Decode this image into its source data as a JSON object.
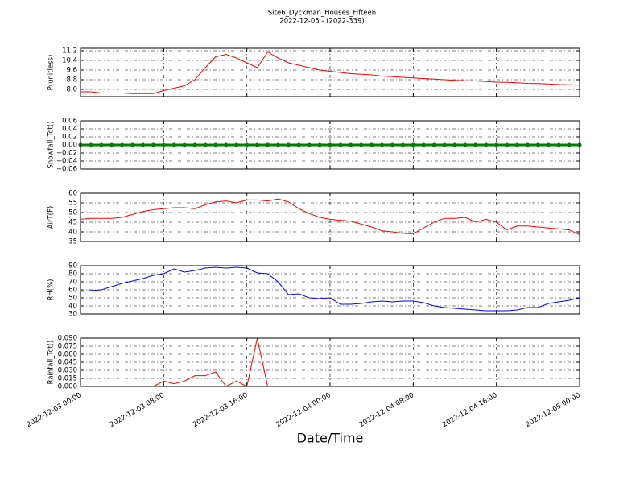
{
  "title": "Site6_Dyckman_Houses_Fifteen",
  "subtitle": "2022-12-05 - (2022-339)",
  "xlabel": "Date/Time",
  "chart_data": [
    {
      "type": "line",
      "ylabel": "P(unitless)",
      "x": [
        "2022-12-03 00:00",
        "2022-12-03 01:00",
        "2022-12-03 02:00",
        "2022-12-03 03:00",
        "2022-12-03 04:00",
        "2022-12-03 05:00",
        "2022-12-03 06:00",
        "2022-12-03 07:00",
        "2022-12-03 08:00",
        "2022-12-03 09:00",
        "2022-12-03 10:00",
        "2022-12-03 11:00",
        "2022-12-03 12:00",
        "2022-12-03 13:00",
        "2022-12-03 14:00",
        "2022-12-03 15:00",
        "2022-12-03 16:00",
        "2022-12-03 17:00",
        "2022-12-03 18:00",
        "2022-12-03 19:00",
        "2022-12-03 20:00",
        "2022-12-03 21:00",
        "2022-12-03 22:00",
        "2022-12-03 23:00",
        "2022-12-04 00:00",
        "2022-12-04 01:00",
        "2022-12-04 02:00",
        "2022-12-04 03:00",
        "2022-12-04 04:00",
        "2022-12-04 05:00",
        "2022-12-04 06:00",
        "2022-12-04 07:00",
        "2022-12-04 08:00",
        "2022-12-04 09:00",
        "2022-12-04 10:00",
        "2022-12-04 11:00",
        "2022-12-04 12:00",
        "2022-12-04 13:00",
        "2022-12-04 14:00",
        "2022-12-04 15:00",
        "2022-12-04 16:00",
        "2022-12-04 17:00",
        "2022-12-04 18:00",
        "2022-12-04 19:00",
        "2022-12-04 20:00",
        "2022-12-04 21:00",
        "2022-12-04 22:00",
        "2022-12-04 23:00",
        "2022-12-05 00:00"
      ],
      "series": [
        {
          "color": "#ff0000",
          "values": [
            7.8,
            7.8,
            7.7,
            7.7,
            7.7,
            7.65,
            7.65,
            7.65,
            7.9,
            8.1,
            8.3,
            8.8,
            9.8,
            10.7,
            10.9,
            10.6,
            10.2,
            9.8,
            11.1,
            10.6,
            10.2,
            10.0,
            9.8,
            9.6,
            9.5,
            9.4,
            9.3,
            9.25,
            9.2,
            9.1,
            9.05,
            9.0,
            8.95,
            8.9,
            8.85,
            8.8,
            8.75,
            8.72,
            8.7,
            8.65,
            8.6,
            8.58,
            8.55,
            8.5,
            8.48,
            8.45,
            8.4,
            8.38,
            8.35
          ]
        }
      ],
      "ylim": [
        7.4,
        11.4
      ],
      "yticks": [
        {
          "value": 8,
          "label": "8.0"
        },
        8.8,
        9.6,
        10.4,
        11.2
      ],
      "xlim": [
        "2022-12-03 00:00",
        "2022-12-05 00:00"
      ],
      "xticks": [
        "2022-12-03 00:00",
        "2022-12-03 08:00",
        "2022-12-03 16:00",
        "2022-12-04 00:00",
        "2022-12-04 08:00",
        "2022-12-04 16:00",
        "2022-12-05 00:00"
      ],
      "grid": true
    },
    {
      "type": "line",
      "ylabel": "Snowfall_Tot()",
      "x": [
        "2022-12-03 00:00",
        "2022-12-03 01:00",
        "2022-12-03 02:00",
        "2022-12-03 03:00",
        "2022-12-03 04:00",
        "2022-12-03 05:00",
        "2022-12-03 06:00",
        "2022-12-03 07:00",
        "2022-12-03 08:00",
        "2022-12-03 09:00",
        "2022-12-03 10:00",
        "2022-12-03 11:00",
        "2022-12-03 12:00",
        "2022-12-03 13:00",
        "2022-12-03 14:00",
        "2022-12-03 15:00",
        "2022-12-03 16:00",
        "2022-12-03 17:00",
        "2022-12-03 18:00",
        "2022-12-03 19:00",
        "2022-12-03 20:00",
        "2022-12-03 21:00",
        "2022-12-03 22:00",
        "2022-12-03 23:00",
        "2022-12-04 00:00",
        "2022-12-04 01:00",
        "2022-12-04 02:00",
        "2022-12-04 03:00",
        "2022-12-04 04:00",
        "2022-12-04 05:00",
        "2022-12-04 06:00",
        "2022-12-04 07:00",
        "2022-12-04 08:00",
        "2022-12-04 09:00",
        "2022-12-04 10:00",
        "2022-12-04 11:00",
        "2022-12-04 12:00",
        "2022-12-04 13:00",
        "2022-12-04 14:00",
        "2022-12-04 15:00",
        "2022-12-04 16:00",
        "2022-12-04 17:00",
        "2022-12-04 18:00",
        "2022-12-04 19:00",
        "2022-12-04 20:00",
        "2022-12-04 21:00",
        "2022-12-04 22:00",
        "2022-12-04 23:00",
        "2022-12-05 00:00"
      ],
      "series": [
        {
          "color": "#008000",
          "marker": true,
          "values": [
            0,
            0,
            0,
            0,
            0,
            0,
            0,
            0,
            0,
            0,
            0,
            0,
            0,
            0,
            0,
            0,
            0,
            0,
            0,
            0,
            0,
            0,
            0,
            0,
            0,
            0,
            0,
            0,
            0,
            0,
            0,
            0,
            0,
            0,
            0,
            0,
            0,
            0,
            0,
            0,
            0,
            0,
            0,
            0,
            0,
            0,
            0,
            0,
            0
          ]
        }
      ],
      "ylim": [
        -0.06,
        0.06
      ],
      "yticks": [
        {
          "value": -0.06,
          "label": "−0.06"
        },
        {
          "value": -0.04,
          "label": "−0.04"
        },
        {
          "value": -0.02,
          "label": "−0.02"
        },
        {
          "value": 0,
          "label": "0.00"
        },
        0.02,
        0.04,
        0.06
      ],
      "xlim": [
        "2022-12-03 00:00",
        "2022-12-05 00:00"
      ],
      "xticks": [
        "2022-12-03 00:00",
        "2022-12-03 08:00",
        "2022-12-03 16:00",
        "2022-12-04 00:00",
        "2022-12-04 08:00",
        "2022-12-04 16:00",
        "2022-12-05 00:00"
      ],
      "grid": true
    },
    {
      "type": "line",
      "ylabel": "AirT(F)",
      "x": [
        "2022-12-03 00:00",
        "2022-12-03 01:00",
        "2022-12-03 02:00",
        "2022-12-03 03:00",
        "2022-12-03 04:00",
        "2022-12-03 05:00",
        "2022-12-03 06:00",
        "2022-12-03 07:00",
        "2022-12-03 08:00",
        "2022-12-03 09:00",
        "2022-12-03 10:00",
        "2022-12-03 11:00",
        "2022-12-03 12:00",
        "2022-12-03 13:00",
        "2022-12-03 14:00",
        "2022-12-03 15:00",
        "2022-12-03 16:00",
        "2022-12-03 17:00",
        "2022-12-03 18:00",
        "2022-12-03 19:00",
        "2022-12-03 20:00",
        "2022-12-03 21:00",
        "2022-12-03 22:00",
        "2022-12-03 23:00",
        "2022-12-04 00:00",
        "2022-12-04 01:00",
        "2022-12-04 02:00",
        "2022-12-04 03:00",
        "2022-12-04 04:00",
        "2022-12-04 05:00",
        "2022-12-04 06:00",
        "2022-12-04 07:00",
        "2022-12-04 08:00",
        "2022-12-04 09:00",
        "2022-12-04 10:00",
        "2022-12-04 11:00",
        "2022-12-04 12:00",
        "2022-12-04 13:00",
        "2022-12-04 14:00",
        "2022-12-04 15:00",
        "2022-12-04 16:00",
        "2022-12-04 17:00",
        "2022-12-04 18:00",
        "2022-12-04 19:00",
        "2022-12-04 20:00",
        "2022-12-04 21:00",
        "2022-12-04 22:00",
        "2022-12-04 23:00",
        "2022-12-05 00:00"
      ],
      "series": [
        {
          "color": "#ff0000",
          "values": [
            46.5,
            47,
            47,
            47,
            47.5,
            49,
            50.5,
            51.5,
            52,
            52.5,
            52.5,
            52,
            54,
            55.5,
            56,
            55,
            56.5,
            56.5,
            56,
            57,
            55.5,
            52,
            49.5,
            47.5,
            46.5,
            46,
            45.5,
            44,
            42.5,
            40.5,
            40,
            39.2,
            39,
            42,
            45,
            47,
            47,
            47.5,
            45,
            46.5,
            45,
            41,
            43,
            43,
            42.5,
            42,
            41.5,
            41,
            38.5
          ]
        }
      ],
      "ylim": [
        35,
        60
      ],
      "yticks": [
        35,
        40,
        45,
        50,
        55,
        60
      ],
      "xlim": [
        "2022-12-03 00:00",
        "2022-12-05 00:00"
      ],
      "xticks": [
        "2022-12-03 00:00",
        "2022-12-03 08:00",
        "2022-12-03 16:00",
        "2022-12-04 00:00",
        "2022-12-04 08:00",
        "2022-12-04 16:00",
        "2022-12-05 00:00"
      ],
      "grid": true
    },
    {
      "type": "line",
      "ylabel": "RH(%)",
      "x": [
        "2022-12-03 00:00",
        "2022-12-03 01:00",
        "2022-12-03 02:00",
        "2022-12-03 03:00",
        "2022-12-03 04:00",
        "2022-12-03 05:00",
        "2022-12-03 06:00",
        "2022-12-03 07:00",
        "2022-12-03 08:00",
        "2022-12-03 09:00",
        "2022-12-03 10:00",
        "2022-12-03 11:00",
        "2022-12-03 12:00",
        "2022-12-03 13:00",
        "2022-12-03 14:00",
        "2022-12-03 15:00",
        "2022-12-03 16:00",
        "2022-12-03 17:00",
        "2022-12-03 18:00",
        "2022-12-03 19:00",
        "2022-12-03 20:00",
        "2022-12-03 21:00",
        "2022-12-03 22:00",
        "2022-12-03 23:00",
        "2022-12-04 00:00",
        "2022-12-04 01:00",
        "2022-12-04 02:00",
        "2022-12-04 03:00",
        "2022-12-04 04:00",
        "2022-12-04 05:00",
        "2022-12-04 06:00",
        "2022-12-04 07:00",
        "2022-12-04 08:00",
        "2022-12-04 09:00",
        "2022-12-04 10:00",
        "2022-12-04 11:00",
        "2022-12-04 12:00",
        "2022-12-04 13:00",
        "2022-12-04 14:00",
        "2022-12-04 15:00",
        "2022-12-04 16:00",
        "2022-12-04 17:00",
        "2022-12-04 18:00",
        "2022-12-04 19:00",
        "2022-12-04 20:00",
        "2022-12-04 21:00",
        "2022-12-04 22:00",
        "2022-12-04 23:00",
        "2022-12-05 00:00"
      ],
      "series": [
        {
          "color": "#0000ff",
          "values": [
            58,
            59,
            60,
            64,
            68,
            71,
            74,
            78,
            80,
            86,
            82,
            84,
            87,
            88,
            87,
            88,
            87,
            81,
            80,
            70,
            54,
            55,
            50,
            49,
            50,
            42,
            42,
            43,
            45,
            46,
            45,
            46,
            46,
            44,
            40,
            38,
            37,
            36,
            35,
            34,
            34,
            34,
            35,
            38,
            38,
            43,
            45,
            47,
            50
          ]
        }
      ],
      "ylim": [
        30,
        90
      ],
      "yticks": [
        30,
        40,
        50,
        60,
        70,
        80,
        90
      ],
      "xlim": [
        "2022-12-03 00:00",
        "2022-12-05 00:00"
      ],
      "xticks": [
        "2022-12-03 00:00",
        "2022-12-03 08:00",
        "2022-12-03 16:00",
        "2022-12-04 00:00",
        "2022-12-04 08:00",
        "2022-12-04 16:00",
        "2022-12-05 00:00"
      ],
      "grid": true
    },
    {
      "type": "line",
      "ylabel": "Rainfall_Tot()",
      "x": [
        "2022-12-03 00:00",
        "2022-12-03 01:00",
        "2022-12-03 02:00",
        "2022-12-03 03:00",
        "2022-12-03 04:00",
        "2022-12-03 05:00",
        "2022-12-03 06:00",
        "2022-12-03 07:00",
        "2022-12-03 08:00",
        "2022-12-03 09:00",
        "2022-12-03 10:00",
        "2022-12-03 11:00",
        "2022-12-03 12:00",
        "2022-12-03 13:00",
        "2022-12-03 14:00",
        "2022-12-03 15:00",
        "2022-12-03 16:00",
        "2022-12-03 17:00",
        "2022-12-03 18:00",
        "2022-12-03 19:00",
        "2022-12-03 20:00",
        "2022-12-03 21:00",
        "2022-12-03 22:00",
        "2022-12-03 23:00",
        "2022-12-04 00:00",
        "2022-12-04 01:00",
        "2022-12-04 02:00",
        "2022-12-04 03:00",
        "2022-12-04 04:00",
        "2022-12-04 05:00",
        "2022-12-04 06:00",
        "2022-12-04 07:00",
        "2022-12-04 08:00",
        "2022-12-04 09:00",
        "2022-12-04 10:00",
        "2022-12-04 11:00",
        "2022-12-04 12:00",
        "2022-12-04 13:00",
        "2022-12-04 14:00",
        "2022-12-04 15:00",
        "2022-12-04 16:00",
        "2022-12-04 17:00",
        "2022-12-04 18:00",
        "2022-12-04 19:00",
        "2022-12-04 20:00",
        "2022-12-04 21:00",
        "2022-12-04 22:00",
        "2022-12-04 23:00",
        "2022-12-05 00:00"
      ],
      "series": [
        {
          "color": "#ff0000",
          "values": [
            0,
            0,
            0,
            0,
            0,
            0,
            0,
            0,
            0.01,
            0.005,
            0.01,
            0.02,
            0.02,
            0.027,
            0,
            0.01,
            0,
            0.09,
            0,
            0,
            0,
            0,
            0,
            0,
            0,
            0,
            0,
            0,
            0,
            0,
            0,
            0,
            0,
            0,
            0,
            0,
            0,
            0,
            0,
            0,
            0,
            0,
            0,
            0,
            0,
            0,
            0,
            0,
            0
          ]
        }
      ],
      "ylim": [
        0,
        0.09
      ],
      "yticks": [
        {
          "value": 0,
          "label": "0.000"
        },
        0.015,
        {
          "value": 0.03,
          "label": "0.030"
        },
        0.045,
        {
          "value": 0.06,
          "label": "0.060"
        },
        0.075,
        {
          "value": 0.09,
          "label": "0.090"
        }
      ],
      "xlim": [
        "2022-12-03 00:00",
        "2022-12-05 00:00"
      ],
      "xticks": [
        "2022-12-03 00:00",
        "2022-12-03 08:00",
        "2022-12-03 16:00",
        "2022-12-04 00:00",
        "2022-12-04 08:00",
        "2022-12-04 16:00",
        "2022-12-05 00:00"
      ],
      "grid": true,
      "show_xtick_labels": true
    }
  ]
}
